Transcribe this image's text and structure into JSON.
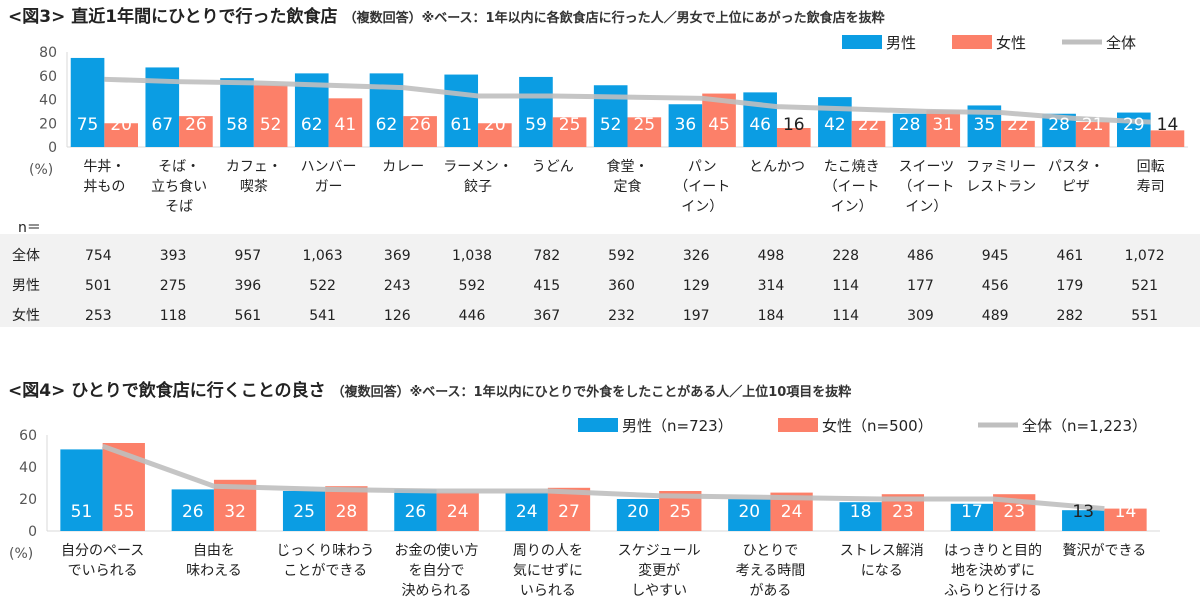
{
  "colors": {
    "male": "#0b9de3",
    "female": "#fc8069",
    "total": "#bfbfbf",
    "table_bg": "#f2f2f2"
  },
  "chart_data": [
    {
      "type": "bar",
      "title": "<図3> 直近1年間にひとりで行った飲食店",
      "subtitle": "（複数回答）※ベース：1年以内に各飲食店に行った人／男女で上位にあがった飲食店を抜粋",
      "ylabel": "(%)",
      "ylim": [
        0,
        80
      ],
      "yticks": [
        0,
        20,
        40,
        60,
        80
      ],
      "legend_position": "top-right",
      "categories": [
        [
          "牛丼・",
          "丼もの"
        ],
        [
          "そば・",
          "立ち食い",
          "そば"
        ],
        [
          "カフェ・",
          "喫茶"
        ],
        [
          "ハンバー",
          "ガー"
        ],
        [
          "カレー"
        ],
        [
          "ラーメン・",
          "餃子"
        ],
        [
          "うどん"
        ],
        [
          "食堂・",
          "定食"
        ],
        [
          "パン",
          "（イート",
          "イン）"
        ],
        [
          "とんかつ"
        ],
        [
          "たこ焼き",
          "（イート",
          "イン）"
        ],
        [
          "スイーツ",
          "（イート",
          "イン）"
        ],
        [
          "ファミリー",
          "レストラン"
        ],
        [
          "パスタ・",
          "ピザ"
        ],
        [
          "回転",
          "寿司"
        ]
      ],
      "series": [
        {
          "name": "男性",
          "kind": "bar",
          "values": [
            75,
            67,
            58,
            62,
            62,
            61,
            59,
            52,
            36,
            46,
            42,
            28,
            35,
            28,
            29
          ]
        },
        {
          "name": "女性",
          "kind": "bar",
          "values": [
            20,
            26,
            52,
            41,
            26,
            20,
            25,
            25,
            45,
            16,
            22,
            31,
            22,
            21,
            14
          ]
        },
        {
          "name": "全体",
          "kind": "line",
          "values": [
            57,
            55,
            54,
            52,
            50,
            43,
            43,
            42,
            41,
            34,
            32,
            30,
            29,
            24,
            21
          ]
        }
      ],
      "table": {
        "header": "n＝",
        "rows": [
          {
            "label": "全体",
            "values": [
              "754",
              "393",
              "957",
              "1,063",
              "369",
              "1,038",
              "782",
              "592",
              "326",
              "498",
              "228",
              "486",
              "945",
              "461",
              "1,072"
            ]
          },
          {
            "label": "男性",
            "values": [
              "501",
              "275",
              "396",
              "522",
              "243",
              "592",
              "415",
              "360",
              "129",
              "314",
              "114",
              "177",
              "456",
              "179",
              "521"
            ]
          },
          {
            "label": "女性",
            "values": [
              "253",
              "118",
              "561",
              "541",
              "126",
              "446",
              "367",
              "232",
              "197",
              "184",
              "114",
              "309",
              "489",
              "282",
              "551"
            ]
          }
        ]
      }
    },
    {
      "type": "bar",
      "title": "<図4> ひとりで飲食店に行くことの良さ",
      "subtitle": "（複数回答）※ベース：1年以内にひとりで外食をしたことがある人／上位10項目を抜粋",
      "ylabel": "(%)",
      "ylim": [
        0,
        60
      ],
      "yticks": [
        0,
        20,
        40,
        60
      ],
      "legend_position": "top-right",
      "categories": [
        [
          "自分のペース",
          "でいられる"
        ],
        [
          "自由を",
          "味わえる"
        ],
        [
          "じっくり味わう",
          "ことができる"
        ],
        [
          "お金の使い方",
          "を自分で",
          "決められる"
        ],
        [
          "周りの人を",
          "気にせずに",
          "いられる"
        ],
        [
          "スケジュール",
          "変更が",
          "しやすい"
        ],
        [
          "ひとりで",
          "考える時間",
          "がある"
        ],
        [
          "ストレス解消",
          "になる"
        ],
        [
          "はっきりと目的",
          "地を決めずに",
          "ふらりと行ける"
        ],
        [
          "贅沢ができる"
        ]
      ],
      "series": [
        {
          "name": "男性（n=723）",
          "kind": "bar",
          "values": [
            51,
            26,
            25,
            26,
            24,
            20,
            20,
            18,
            17,
            13
          ]
        },
        {
          "name": "女性（n=500）",
          "kind": "bar",
          "values": [
            55,
            32,
            28,
            24,
            27,
            25,
            24,
            23,
            23,
            14
          ]
        },
        {
          "name": "全体（n=1,223）",
          "kind": "line",
          "values": [
            53,
            28,
            26,
            25,
            25,
            22,
            21,
            20,
            20,
            14
          ]
        }
      ]
    }
  ]
}
